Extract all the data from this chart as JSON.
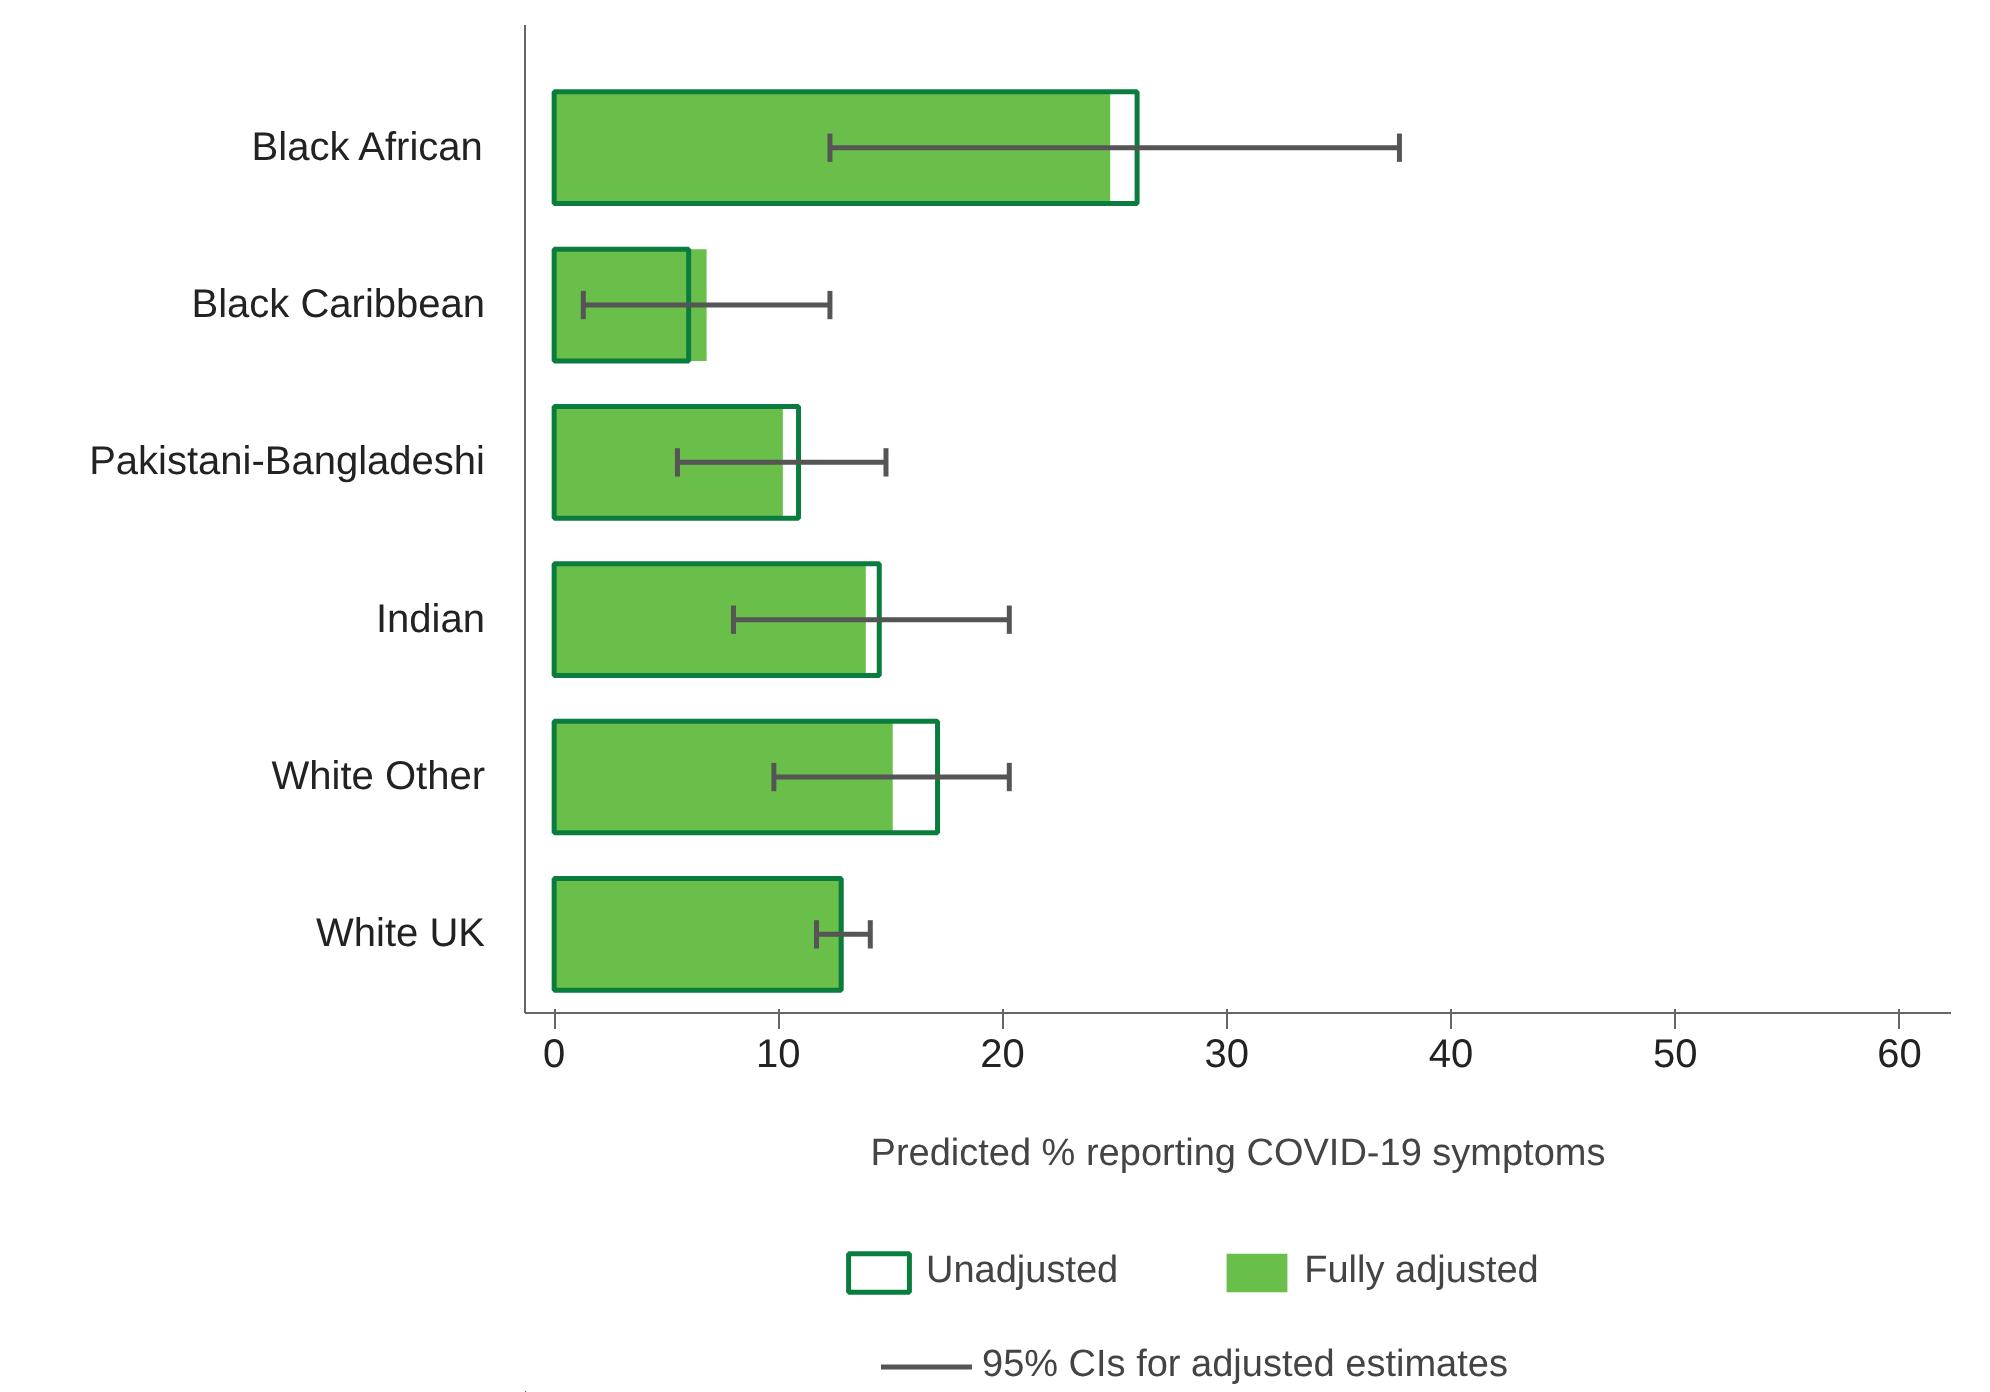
{
  "chart_data": {
    "type": "bar",
    "orientation": "horizontal",
    "xlabel": "Predicted % reporting COVID-19 symptoms",
    "categories": [
      "Black African",
      "Black Caribbean",
      "Pakistani-Bangladeshi",
      "Indian",
      "White Other",
      "White UK"
    ],
    "series": [
      {
        "name": "Unadjusted",
        "color": "#0a7d3e",
        "values": [
          26.0,
          6.0,
          10.9,
          14.5,
          17.1,
          12.8
        ]
      },
      {
        "name": "Fully adjusted",
        "color": "#6abf4b",
        "values": [
          24.8,
          6.8,
          10.2,
          13.9,
          15.1,
          12.9
        ],
        "errors": [
          [
            12.3,
            37.7
          ],
          [
            1.3,
            12.3
          ],
          [
            5.5,
            14.8
          ],
          [
            8.0,
            20.3
          ],
          [
            9.8,
            20.3
          ],
          [
            11.7,
            14.1
          ]
        ]
      }
    ],
    "xlim": [
      -1.3,
      62.3
    ],
    "xticks": [
      0,
      10,
      20,
      30,
      40,
      50,
      60
    ],
    "grid": false,
    "legend": "bottom",
    "annotations": [
      "95% CIs for adjusted estimates"
    ]
  }
}
